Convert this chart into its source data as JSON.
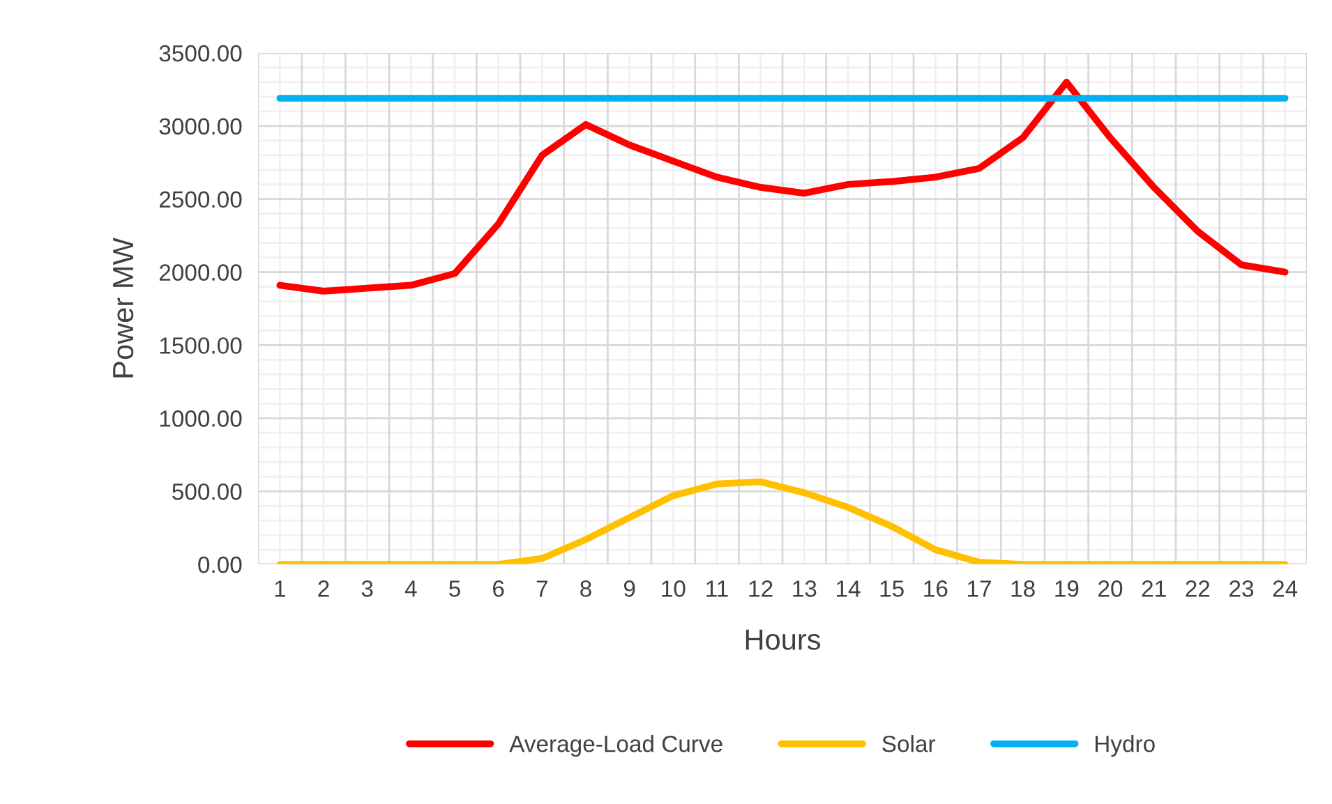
{
  "chart_data": {
    "type": "line",
    "xlabel": "Hours",
    "ylabel": "Power MW",
    "categories": [
      "1",
      "2",
      "3",
      "4",
      "5",
      "6",
      "7",
      "8",
      "9",
      "10",
      "11",
      "12",
      "13",
      "14",
      "15",
      "16",
      "17",
      "18",
      "19",
      "20",
      "21",
      "22",
      "23",
      "24"
    ],
    "series": [
      {
        "name": "Average-Load Curve",
        "color": "#ff0000",
        "values": [
          1910,
          1870,
          1890,
          1910,
          1990,
          2330,
          2800,
          3010,
          2870,
          2760,
          2650,
          2580,
          2540,
          2600,
          2620,
          2650,
          2710,
          2920,
          3300,
          2920,
          2580,
          2280,
          2050,
          2000
        ]
      },
      {
        "name": "Solar",
        "color": "#ffc000",
        "values": [
          0,
          0,
          0,
          0,
          0,
          0,
          40,
          170,
          320,
          470,
          550,
          565,
          490,
          390,
          260,
          100,
          15,
          0,
          0,
          0,
          0,
          0,
          0,
          0
        ]
      },
      {
        "name": "Hydro",
        "color": "#00b0f0",
        "values": [
          3190,
          3190,
          3190,
          3190,
          3190,
          3190,
          3190,
          3190,
          3190,
          3190,
          3190,
          3190,
          3190,
          3190,
          3190,
          3190,
          3190,
          3190,
          3190,
          3190,
          3190,
          3190,
          3190,
          3190
        ]
      }
    ],
    "ylim": [
      0,
      3500
    ],
    "yticks": [
      {
        "value": 0,
        "label": "0.00"
      },
      {
        "value": 500,
        "label": "500.00"
      },
      {
        "value": 1000,
        "label": "1000.00"
      },
      {
        "value": 1500,
        "label": "1500.00"
      },
      {
        "value": 2000,
        "label": "2000.00"
      },
      {
        "value": 2500,
        "label": "2500.00"
      },
      {
        "value": 3000,
        "label": "3000.00"
      },
      {
        "value": 3500,
        "label": "3500.00"
      }
    ],
    "grid": true,
    "legend": "bottom",
    "marker": "none",
    "line_style": "solid"
  }
}
